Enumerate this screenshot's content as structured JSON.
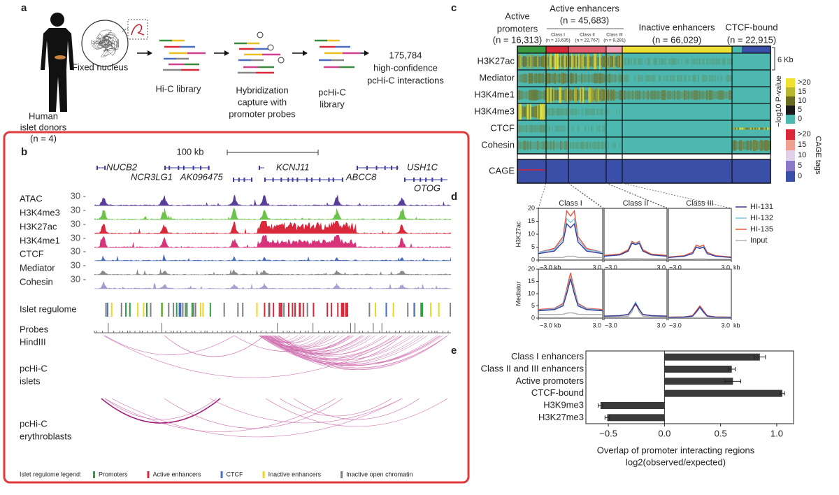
{
  "panel_a": {
    "label": "a",
    "donors": [
      "Human",
      "islet donors",
      "(n = 4)"
    ],
    "nucleus": "Fixed nucleus",
    "hic": "Hi-C library",
    "capture": [
      "Hybridization",
      "capture with",
      "promoter probes"
    ],
    "pchic": [
      "pcHi-C",
      "library"
    ],
    "result": [
      "175,784",
      "high-confidence",
      "pcHi-C interactions"
    ]
  },
  "panel_b": {
    "label": "b",
    "scale": "100 kb",
    "genes": [
      "NUCB2",
      "NCR3LG1",
      "AK096475",
      "KCNJ11",
      "ABCC8",
      "USH1C",
      "OTOG"
    ],
    "tracks": [
      {
        "name": "ATAC",
        "color": "#5a3d98",
        "scale": "30 -"
      },
      {
        "name": "H3K4me3",
        "color": "#6cc24a",
        "scale": "30 -"
      },
      {
        "name": "H3K27ac",
        "color": "#d9283a",
        "scale": "30 -"
      },
      {
        "name": "H3K4me1",
        "color": "#d6337a",
        "scale": "30 -"
      },
      {
        "name": "CTCF",
        "color": "#4a6fc0",
        "scale": "30 -"
      },
      {
        "name": "Mediator",
        "color": "#8a8a8a",
        "scale": "30 -"
      },
      {
        "name": "Cohesin",
        "color": "#a89cd0",
        "scale": "30 -"
      }
    ],
    "regulome": "Islet regulome",
    "probes": "Probes",
    "hindiii": "HindIII",
    "islets": [
      "pcHi-C",
      "islets"
    ],
    "erythroblasts": [
      "pcHi-C",
      "erythroblasts"
    ],
    "legend_title": "Islet regulome legend:",
    "legend": [
      {
        "name": "Promoters",
        "color": "#2e9e3e"
      },
      {
        "name": "Active enhancers",
        "color": "#d9283a"
      },
      {
        "name": "CTCF",
        "color": "#4a6fc0"
      },
      {
        "name": "Inactive enhancers",
        "color": "#e8d820"
      },
      {
        "name": "Inactive open chromatin",
        "color": "#808080"
      }
    ]
  },
  "panel_c": {
    "label": "c",
    "groups": [
      {
        "name": "Active",
        "name2": "promoters",
        "n": "(n = 16,313)"
      },
      {
        "name": "Active enhancers",
        "n": "(n = 45,683)"
      },
      {
        "name": "Inactive enhancers",
        "n": "(n = 66,029)"
      },
      {
        "name": "CTCF-bound",
        "n": "(n = 22,915)"
      }
    ],
    "classes": [
      {
        "name": "Class I",
        "n": "(n = 13,635)"
      },
      {
        "name": "Class II",
        "n": "(n = 22,767)"
      },
      {
        "name": "Class III",
        "n": "(n = 9,281)"
      }
    ],
    "rows": [
      "H3K27ac",
      "Mediator",
      "H3K4me1",
      "H3K4me3",
      "CTCF",
      "Cohesin"
    ],
    "cage": "CAGE",
    "span": "6 Kb",
    "pvalue": {
      "title": "−log10 P-value",
      "ticks": [
        ">20",
        "15",
        "10",
        "5",
        "0"
      ]
    },
    "cage_tags": {
      "title": "CAGE tags",
      "ticks": [
        ">20",
        "15",
        "10",
        "5",
        "0"
      ]
    }
  },
  "chart_data": [
    {
      "type": "line",
      "label": "d",
      "row_labels": [
        "H3K27ac",
        "Mediator"
      ],
      "panels": [
        "Class I",
        "Class II",
        "Class III"
      ],
      "x": [
        -3,
        -1.5,
        -0.7,
        -0.35,
        0,
        0.35,
        0.7,
        1.5,
        3
      ],
      "xlim": [
        -3,
        3
      ],
      "xticks": [
        {
          "value": -3,
          "label": "−3.0"
        },
        {
          "value": 3,
          "label": "3.0"
        }
      ],
      "xunit": "kb",
      "ylim": [
        0,
        20
      ],
      "yticks": [
        0,
        5,
        10,
        15,
        20
      ],
      "series": [
        {
          "name": "HI-131",
          "color": "#3b3d96",
          "values": [
            [
              [
                2.5,
                3.5,
                7,
                14,
                12.5,
                14,
                7,
                3.5,
                2.5
              ],
              [
                1.5,
                2,
                3.5,
                6.5,
                6,
                6.5,
                3.5,
                2,
                1.5
              ],
              [
                1,
                1.5,
                2.5,
                5,
                4.5,
                5,
                2.5,
                1.5,
                1
              ]
            ],
            [
              [
                3,
                3.5,
                5,
                10,
                16,
                10,
                5,
                3.5,
                3
              ],
              [
                0.8,
                1,
                1.5,
                3.5,
                6,
                3.5,
                1.5,
                1,
                0.8
              ],
              [
                0.3,
                0.4,
                0.8,
                2.5,
                4.5,
                2.5,
                0.8,
                0.4,
                0.3
              ]
            ]
          ]
        },
        {
          "name": "HI-132",
          "color": "#7cc4e8",
          "values": [
            [
              [
                3,
                4,
                8,
                16,
                14.5,
                16,
                8,
                4,
                3
              ],
              [
                1.5,
                2,
                3.5,
                6.8,
                6.2,
                6.8,
                3.5,
                2,
                1.5
              ],
              [
                1,
                1.5,
                2.6,
                5.2,
                4.7,
                5.2,
                2.6,
                1.5,
                1
              ]
            ],
            [
              [
                3.2,
                3.8,
                5.5,
                11,
                16.5,
                11,
                5.5,
                3.8,
                3.2
              ],
              [
                0.8,
                1,
                1.5,
                3.8,
                6.5,
                3.8,
                1.5,
                1,
                0.8
              ],
              [
                0.3,
                0.4,
                0.8,
                2.3,
                4.2,
                2.3,
                0.8,
                0.4,
                0.3
              ]
            ]
          ]
        },
        {
          "name": "HI-135",
          "color": "#e8553a",
          "values": [
            [
              [
                3,
                4.5,
                9,
                19,
                17,
                19,
                9,
                4.5,
                3
              ],
              [
                1.8,
                2.3,
                4,
                7.2,
                6.5,
                7.2,
                4,
                2.3,
                1.8
              ],
              [
                1.2,
                1.7,
                3,
                5.8,
                5.2,
                5.8,
                3,
                1.7,
                1.2
              ]
            ],
            [
              [
                3.5,
                4,
                6,
                12,
                18.5,
                12,
                6,
                4,
                3.5
              ],
              [
                0.8,
                1,
                1.4,
                3.5,
                5.5,
                3.5,
                1.4,
                1,
                0.8
              ],
              [
                0.4,
                0.5,
                1,
                3,
                5,
                3,
                1,
                0.5,
                0.4
              ]
            ]
          ]
        },
        {
          "name": "Input",
          "color": "#b0b0b0",
          "values": [
            [
              [
                1,
                1,
                1,
                1.5,
                1.5,
                1.5,
                1,
                1,
                1
              ],
              [
                0.5,
                0.5,
                0.5,
                0.6,
                0.6,
                0.6,
                0.5,
                0.5,
                0.5
              ],
              [
                0.4,
                0.4,
                0.4,
                0.5,
                0.5,
                0.5,
                0.4,
                0.4,
                0.4
              ]
            ],
            [
              [
                1.5,
                1.5,
                1.6,
                2,
                2.2,
                2,
                1.6,
                1.5,
                1.5
              ],
              [
                0.5,
                0.6,
                0.8,
                2.5,
                6.5,
                2.5,
                0.8,
                0.6,
                0.5
              ],
              [
                0.2,
                0.2,
                0.2,
                0.2,
                0.2,
                0.2,
                0.2,
                0.2,
                0.2
              ]
            ]
          ]
        }
      ]
    },
    {
      "type": "bar",
      "label": "e",
      "orientation": "horizontal",
      "categories": [
        "Class I enhancers",
        "Class II and III enhancers",
        "Active promoters",
        "CTCF-bound",
        "H3K9me3",
        "H3K27me3"
      ],
      "values": [
        0.85,
        0.6,
        0.61,
        1.05,
        -0.57,
        -0.51
      ],
      "errors": [
        0.05,
        0.03,
        0.07,
        0.02,
        0.02,
        0.02
      ],
      "color": "#3a3a3a",
      "xlim": [
        -0.7,
        1.15
      ],
      "xticks": [
        {
          "value": -0.5,
          "label": "−0.5"
        },
        {
          "value": 0,
          "label": "0.0"
        },
        {
          "value": 0.5,
          "label": "0.5"
        },
        {
          "value": 1,
          "label": "1.0"
        }
      ],
      "xlabel": [
        "Overlap of promoter interacting regions",
        "log2(observed/expected)"
      ]
    }
  ]
}
